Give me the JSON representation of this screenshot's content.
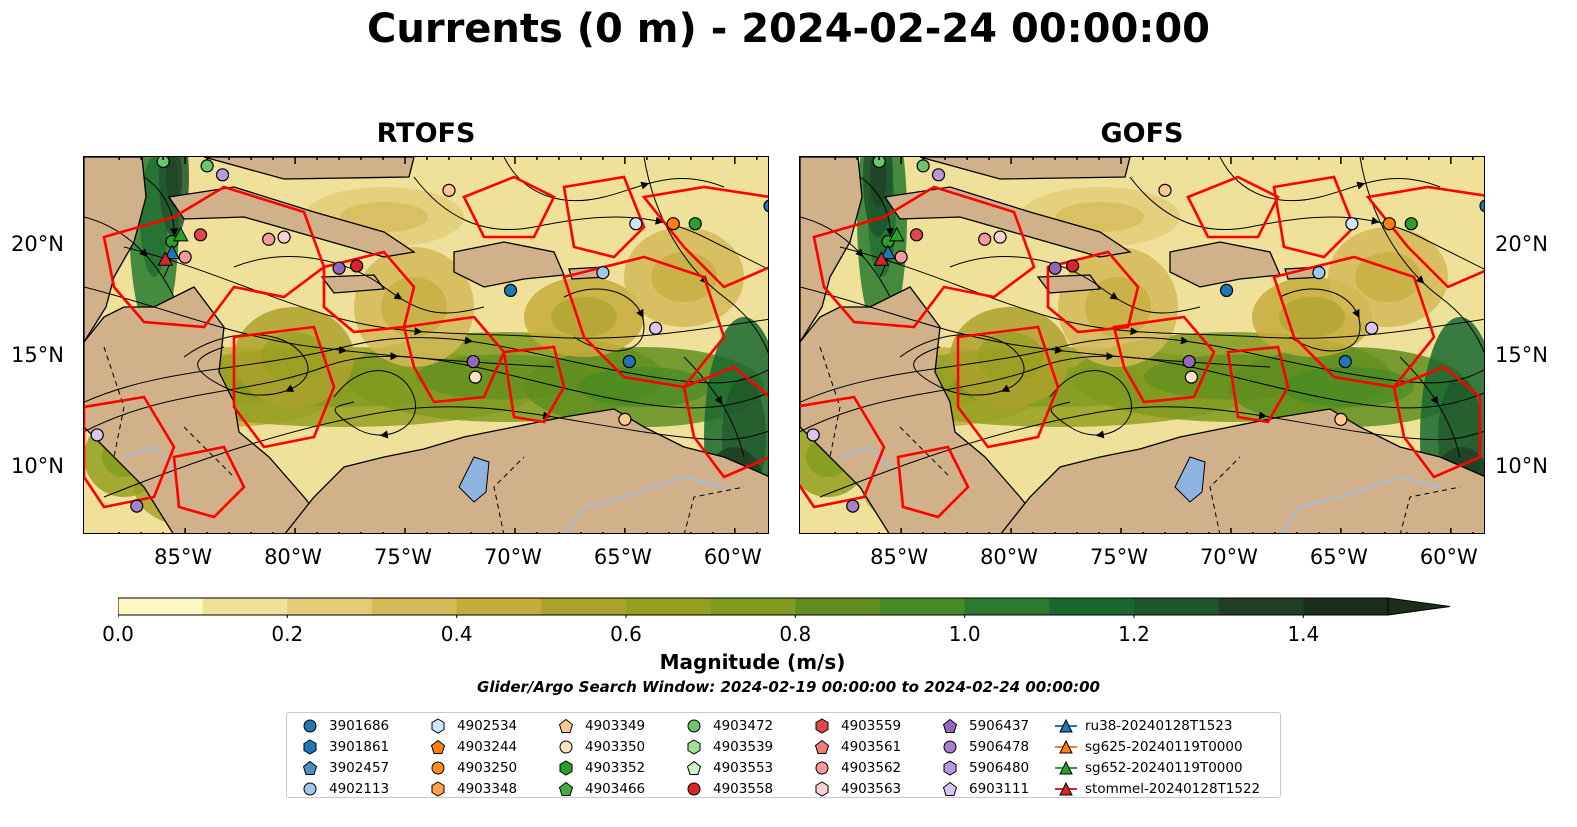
{
  "title": "Currents (0 m) - 2024-02-24 00:00:00",
  "panels": [
    {
      "title": "RTOFS"
    },
    {
      "title": "GOFS"
    }
  ],
  "axes": {
    "lon_ticks": [
      "85°W",
      "80°W",
      "75°W",
      "70°W",
      "65°W",
      "60°W"
    ],
    "lat_ticks": [
      "20°N",
      "15°N",
      "10°N"
    ],
    "lon_range": [
      -89.6,
      -58.4
    ],
    "lat_range": [
      7,
      24
    ]
  },
  "colorbar": {
    "label": "Magnitude (m/s)",
    "ticks": [
      "0.0",
      "0.2",
      "0.4",
      "0.6",
      "0.8",
      "1.0",
      "1.2",
      "1.4"
    ],
    "range": [
      0,
      1.5
    ],
    "extend": "max",
    "colors": [
      "#fdf8c4",
      "#efe19a",
      "#e2cc78",
      "#d4ba58",
      "#c5ac3d",
      "#ada12d",
      "#94a020",
      "#7f9a1e",
      "#5f8e1f",
      "#468a24",
      "#287a2e",
      "#19692f",
      "#1e552a",
      "#203e23",
      "#1c2e1b"
    ]
  },
  "search_window": "Glider/Argo Search Window: 2024-02-19 00:00:00 to 2024-02-24 00:00:00",
  "colors": {
    "land": "#d1b18a",
    "lake": "#8fb3e0",
    "river": "#a7bcd8",
    "boundary": "#ff0000"
  },
  "legend": [
    {
      "label": "3901686",
      "marker": "circle",
      "color": "#1f77b4"
    },
    {
      "label": "3901861",
      "marker": "hexagon",
      "color": "#1f77b4"
    },
    {
      "label": "3902457",
      "marker": "pentagon",
      "color": "#4a90c4"
    },
    {
      "label": "4902113",
      "marker": "circle",
      "color": "#9ec9ea"
    },
    {
      "label": "4902534",
      "marker": "hexagon",
      "color": "#cfe6f6"
    },
    {
      "label": "4903244",
      "marker": "pentagon",
      "color": "#ff7f0e"
    },
    {
      "label": "4903250",
      "marker": "circle",
      "color": "#ff8c1a"
    },
    {
      "label": "4903348",
      "marker": "hexagon",
      "color": "#ffa24d"
    },
    {
      "label": "4903349",
      "marker": "pentagon",
      "color": "#ffc88f"
    },
    {
      "label": "4903350",
      "marker": "circle",
      "color": "#ffe2c4"
    },
    {
      "label": "4903352",
      "marker": "hexagon",
      "color": "#2ca02c"
    },
    {
      "label": "4903466",
      "marker": "pentagon",
      "color": "#3fae3f"
    },
    {
      "label": "4903472",
      "marker": "circle",
      "color": "#6cc56c"
    },
    {
      "label": "4903539",
      "marker": "hexagon",
      "color": "#a5dd9a"
    },
    {
      "label": "4903553",
      "marker": "pentagon",
      "color": "#d3f5cc"
    },
    {
      "label": "4903558",
      "marker": "circle",
      "color": "#d62728"
    },
    {
      "label": "4903559",
      "marker": "hexagon",
      "color": "#e0474a"
    },
    {
      "label": "4903561",
      "marker": "pentagon",
      "color": "#f07b7d"
    },
    {
      "label": "4903562",
      "marker": "circle",
      "color": "#f49a9a"
    },
    {
      "label": "4903563",
      "marker": "hexagon",
      "color": "#fbd0d0"
    },
    {
      "label": "5906437",
      "marker": "pentagon",
      "color": "#9467bd"
    },
    {
      "label": "5906478",
      "marker": "circle",
      "color": "#a47fcc"
    },
    {
      "label": "5906480",
      "marker": "hexagon",
      "color": "#b898de"
    },
    {
      "label": "6903111",
      "marker": "pentagon",
      "color": "#d9c4f2"
    },
    {
      "label": "ru38-20240128T1523",
      "marker": "triangle-line",
      "color": "#1f77b4"
    },
    {
      "label": "sg625-20240119T0000",
      "marker": "triangle-line",
      "color": "#ff7f0e"
    },
    {
      "label": "sg652-20240119T0000",
      "marker": "triangle-line",
      "color": "#2ca02c"
    },
    {
      "label": "stommel-20240128T1522",
      "marker": "triangle-line",
      "color": "#d62728"
    }
  ]
}
